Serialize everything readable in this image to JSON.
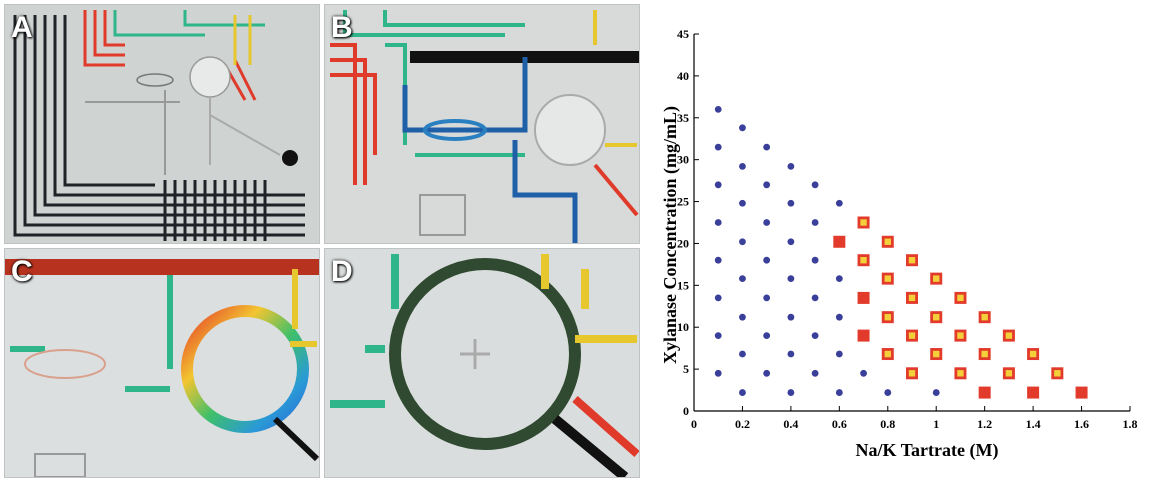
{
  "panels": [
    {
      "label": "A"
    },
    {
      "label": "B"
    },
    {
      "label": "C"
    },
    {
      "label": "D"
    }
  ],
  "chart_data": {
    "type": "scatter",
    "title": "",
    "xlabel": "Na/K Tartrate (M)",
    "ylabel": "Xylanase Concentration (mg/mL)",
    "xlim": [
      0,
      1.8
    ],
    "ylim": [
      0,
      45
    ],
    "xticks": [
      0,
      0.2,
      0.4,
      0.6,
      0.8,
      1,
      1.2,
      1.4,
      1.6,
      1.8
    ],
    "xtick_labels": [
      "0",
      "0.2",
      "0.4",
      "0.6",
      "0.8",
      "1",
      "1.2",
      "1.4",
      "1.6",
      "1.8"
    ],
    "yticks": [
      0,
      5,
      10,
      15,
      20,
      25,
      30,
      35,
      40,
      45
    ],
    "ytick_labels": [
      "0",
      "5",
      "10",
      "15",
      "20",
      "25",
      "30",
      "35",
      "40",
      "45"
    ],
    "grid": false,
    "legend": "none",
    "colors": {
      "blue": "#3a3f9a",
      "red": "#e23b2c",
      "yellow": "#f3cf3a"
    },
    "series": [
      {
        "marker": "blue-dot",
        "points": [
          [
            0.1,
            36
          ],
          [
            0.1,
            31.5
          ],
          [
            0.1,
            27
          ],
          [
            0.1,
            22.5
          ],
          [
            0.1,
            18
          ],
          [
            0.1,
            13.5
          ],
          [
            0.1,
            9
          ],
          [
            0.1,
            4.5
          ],
          [
            0.2,
            33.8
          ],
          [
            0.2,
            29.2
          ],
          [
            0.2,
            24.8
          ],
          [
            0.2,
            20.2
          ],
          [
            0.2,
            15.8
          ],
          [
            0.2,
            11.2
          ],
          [
            0.2,
            6.8
          ],
          [
            0.2,
            2.2
          ],
          [
            0.3,
            31.5
          ],
          [
            0.3,
            27
          ],
          [
            0.3,
            22.5
          ],
          [
            0.3,
            18
          ],
          [
            0.3,
            13.5
          ],
          [
            0.3,
            9
          ],
          [
            0.3,
            4.5
          ],
          [
            0.4,
            29.2
          ],
          [
            0.4,
            24.8
          ],
          [
            0.4,
            20.2
          ],
          [
            0.4,
            15.8
          ],
          [
            0.4,
            11.2
          ],
          [
            0.4,
            6.8
          ],
          [
            0.4,
            2.2
          ],
          [
            0.5,
            27
          ],
          [
            0.5,
            22.5
          ],
          [
            0.5,
            18
          ],
          [
            0.5,
            13.5
          ],
          [
            0.5,
            9
          ],
          [
            0.5,
            4.5
          ],
          [
            0.6,
            24.8
          ],
          [
            0.6,
            15.8
          ],
          [
            0.6,
            11.2
          ],
          [
            0.6,
            6.8
          ],
          [
            0.6,
            2.2
          ],
          [
            0.7,
            4.5
          ],
          [
            0.8,
            2.2
          ],
          [
            1.0,
            2.2
          ]
        ]
      },
      {
        "marker": "red-square",
        "points": [
          [
            0.6,
            20.2
          ],
          [
            0.7,
            13.5
          ],
          [
            0.7,
            9
          ],
          [
            1.2,
            2.2
          ],
          [
            1.4,
            2.2
          ],
          [
            1.6,
            2.2
          ]
        ]
      },
      {
        "marker": "red-square-yellow-center",
        "points": [
          [
            0.7,
            22.5
          ],
          [
            0.7,
            18
          ],
          [
            0.8,
            20.2
          ],
          [
            0.8,
            15.8
          ],
          [
            0.8,
            11.2
          ],
          [
            0.8,
            6.8
          ],
          [
            0.9,
            18
          ],
          [
            0.9,
            13.5
          ],
          [
            0.9,
            9
          ],
          [
            0.9,
            4.5
          ],
          [
            1.0,
            15.8
          ],
          [
            1.0,
            11.2
          ],
          [
            1.0,
            6.8
          ],
          [
            1.1,
            13.5
          ],
          [
            1.1,
            9
          ],
          [
            1.1,
            4.5
          ],
          [
            1.2,
            11.2
          ],
          [
            1.2,
            6.8
          ],
          [
            1.3,
            9
          ],
          [
            1.3,
            4.5
          ],
          [
            1.4,
            6.8
          ],
          [
            1.5,
            4.5
          ]
        ]
      }
    ]
  }
}
